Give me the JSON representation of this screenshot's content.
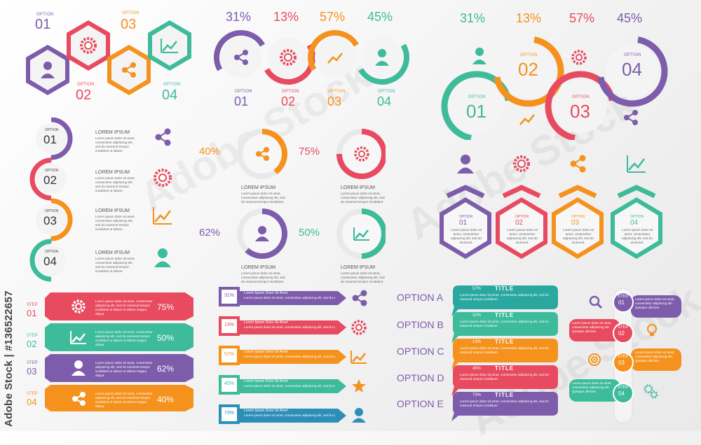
{
  "colors": {
    "purple": "#7c5cab",
    "red": "#e84a5f",
    "orange": "#f5921e",
    "green": "#3dbb9a",
    "teal": "#2aa8a0",
    "blue": "#2d8fb8"
  },
  "hex_group": {
    "options": [
      {
        "label": "OPTION",
        "num": "01",
        "icon": "user-icon"
      },
      {
        "label": "OPTION",
        "num": "03",
        "icon": "gear-icon"
      },
      {
        "label": "OPTION",
        "num": "02",
        "icon": "share-icon"
      },
      {
        "label": "OPTION",
        "num": "04",
        "icon": "chart-icon"
      }
    ]
  },
  "circle_row": {
    "percents": [
      "31%",
      "13%",
      "57%",
      "45%"
    ],
    "options": [
      {
        "label": "OPTION",
        "num": "01"
      },
      {
        "label": "OPTION",
        "num": "02"
      },
      {
        "label": "OPTION",
        "num": "03"
      },
      {
        "label": "OPTION",
        "num": "04"
      }
    ]
  },
  "big_circles": {
    "percents": [
      "31%",
      "13%",
      "57%",
      "45%"
    ],
    "options": [
      {
        "label": "OPTION",
        "num": "01"
      },
      {
        "label": "OPTION",
        "num": "02"
      },
      {
        "label": "OPTION",
        "num": "03"
      },
      {
        "label": "OPTION",
        "num": "04"
      }
    ]
  },
  "vertical_list": {
    "items": [
      {
        "label": "OPTION",
        "num": "01",
        "title": "LOREM IPSUM",
        "text": "Lorem ipsum dolor sit amet, consectetur adipiscing elit, sed do eiusmod tempor incididunt ut labore.",
        "icon": "share-icon"
      },
      {
        "label": "OPTION",
        "num": "02",
        "title": "LOREM IPSUM",
        "text": "Lorem ipsum dolor sit amet, consectetur adipiscing elit, sed do eiusmod tempor incididunt ut labore.",
        "icon": "gear-icon"
      },
      {
        "label": "OPTION",
        "num": "03",
        "title": "LOREM IPSUM",
        "text": "Lorem ipsum dolor sit amet, consectetur adipiscing elit, sed do eiusmod tempor incididunt ut labore.",
        "icon": "chart-icon"
      },
      {
        "label": "OPTION",
        "num": "04",
        "title": "LOREM IPSUM",
        "text": "Lorem ipsum dolor sit amet, consectetur adipiscing elit, sed do eiusmod tempor incididunt ut labore.",
        "icon": "user-icon"
      }
    ]
  },
  "donuts": [
    {
      "pct": "40%",
      "value": 0.4,
      "title": "LOREM IPSUM",
      "text": "Lorem ipsum dolor sit amet, consectetur adipiscing elit, sed do eiusmod tempor incididunt.",
      "icon": "share-icon"
    },
    {
      "pct": "75%",
      "value": 0.75,
      "title": "LOREM IPSUM",
      "text": "Lorem ipsum dolor sit amet, consectetur adipiscing elit, sed do eiusmod tempor incididunt.",
      "icon": "gear-icon"
    },
    {
      "pct": "62%",
      "value": 0.62,
      "title": "LOREM IPSUM",
      "text": "Lorem ipsum dolor sit amet, consectetur adipiscing elit, sed do eiusmod tempor incididunt.",
      "icon": "user-icon"
    },
    {
      "pct": "50%",
      "value": 0.5,
      "title": "LOREM IPSUM",
      "text": "Lorem ipsum dolor sit amet, consectetur adipiscing elit, sed do eiusmod tempor incididunt.",
      "icon": "chart-icon"
    }
  ],
  "shield_hexes": {
    "items": [
      {
        "label": "OPTION",
        "num": "01",
        "text": "Lorem ipsum dolor sit amet, consectetur adipiscing elit, sed do eiusmod.",
        "icon": "user-icon"
      },
      {
        "label": "OPTION",
        "num": "02",
        "text": "Lorem ipsum dolor sit amet, consectetur adipiscing elit, sed do eiusmod.",
        "icon": "gear-icon"
      },
      {
        "label": "OPTION",
        "num": "03",
        "text": "Lorem ipsum dolor sit amet, consectetur adipiscing elit, sed do eiusmod.",
        "icon": "share-icon"
      },
      {
        "label": "OPTION",
        "num": "04",
        "text": "Lorem ipsum dolor sit amet, consectetur adipiscing elit, sed do eiusmod.",
        "icon": "chart-icon"
      }
    ]
  },
  "steps_bars": {
    "items": [
      {
        "label": "STEP",
        "num": "01",
        "pct": "75%",
        "text": "Lorem ipsum dolor sit amet, consectetur adipiscing elit, sed do eiusmod tempor incididunt ut labore et dolore magna aliqua.",
        "icon": "gear-icon"
      },
      {
        "label": "STEP",
        "num": "02",
        "pct": "50%",
        "text": "Lorem ipsum dolor sit amet, consectetur adipiscing elit, sed do eiusmod tempor incididunt ut labore et dolore magna aliqua.",
        "icon": "chart-icon"
      },
      {
        "label": "STEP",
        "num": "03",
        "pct": "62%",
        "text": "Lorem ipsum dolor sit amet, consectetur adipiscing elit, sed do eiusmod tempor incididunt ut labore et dolore magna aliqua.",
        "icon": "user-icon"
      },
      {
        "label": "STEP",
        "num": "04",
        "pct": "40%",
        "text": "Lorem ipsum dolor sit amet, consectetur adipiscing elit, sed do eiusmod tempor incididunt ut labore et dolore magna aliqua.",
        "icon": "share-icon"
      }
    ]
  },
  "arrow_bars": {
    "items": [
      {
        "pct": "31%",
        "title": "Lorem Ipsum Dolor Sit Amet",
        "text": "Lorem ipsum dolor sit amet, consectetur adipiscing elit, sed do eiusmod.",
        "icon": "share-icon"
      },
      {
        "pct": "13%",
        "title": "Lorem Ipsum Dolor Sit Amet",
        "text": "Lorem ipsum dolor sit amet, consectetur adipiscing elit, sed do eiusmod.",
        "icon": "gear-icon"
      },
      {
        "pct": "57%",
        "title": "Lorem Ipsum Dolor Sit Amet",
        "text": "Lorem ipsum dolor sit amet, consectetur adipiscing elit, sed do eiusmod.",
        "icon": "chart-icon"
      },
      {
        "pct": "45%",
        "title": "Lorem Ipsum Dolor Sit Amet",
        "text": "Lorem ipsum dolor sit amet, consectetur adipiscing elit, sed do eiusmod.",
        "icon": "star-icon"
      },
      {
        "pct": "73%",
        "title": "Lorem Ipsum Dolor Sit Amet",
        "text": "Lorem ipsum dolor sit amet, consectetur adipiscing elit, sed do eiusmod.",
        "icon": "user-icon"
      }
    ]
  },
  "option_tabs": {
    "items": [
      {
        "label": "OPTION A",
        "pct": "57%",
        "title": "TITLE",
        "text": "Lorem ipsum dolor sit amet, consectetur adipiscing elit, sed do eiusmod tempor incididunt."
      },
      {
        "label": "OPTION B",
        "pct": "31%",
        "title": "TITLE",
        "text": "Lorem ipsum dolor sit amet, consectetur adipiscing elit, sed do eiusmod tempor incididunt."
      },
      {
        "label": "OPTION C",
        "pct": "13%",
        "title": "TITLE",
        "text": "Lorem ipsum dolor sit amet, consectetur adipiscing elit, sed do eiusmod tempor incididunt."
      },
      {
        "label": "OPTION D",
        "pct": "45%",
        "title": "TITLE",
        "text": "Lorem ipsum dolor sit amet, consectetur adipiscing elit, sed do eiusmod tempor incididunt."
      },
      {
        "label": "OPTION E",
        "pct": "73%",
        "title": "TITLE",
        "text": "Lorem ipsum dolor sit amet, consectetur adipiscing elit, sed do eiusmod tempor incididunt."
      }
    ]
  },
  "timeline": {
    "items": [
      {
        "label": "STEP",
        "num": "01",
        "text": "Lorem ipsum dolor sit amet, consectetur adipiscing elit. Quisque ultricies.",
        "icon": "search-icon"
      },
      {
        "label": "STEP",
        "num": "02",
        "text": "Lorem ipsum dolor sit amet, consectetur adipiscing elit. Quisque ultricies.",
        "icon": "bulb-icon"
      },
      {
        "label": "STEP",
        "num": "03",
        "text": "Lorem ipsum dolor sit amet, consectetur adipiscing elit. Quisque ultricies.",
        "icon": "target-icon"
      },
      {
        "label": "STEP",
        "num": "04",
        "text": "Lorem ipsum dolor sit amet, consectetur adipiscing elit. Quisque ultricies.",
        "icon": "gears-icon"
      }
    ]
  },
  "watermark": {
    "text": "Adobe Stock | #136522657",
    "bg": "Adobe Stock"
  }
}
